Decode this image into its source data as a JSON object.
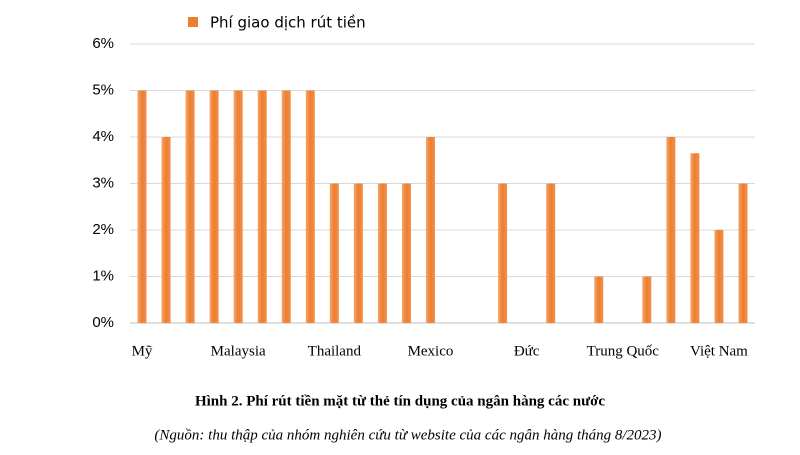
{
  "chart_data": {
    "type": "bar",
    "title": "Hình 2. Phí rút tiền mặt từ thẻ tín dụng của ngân hàng các nước",
    "subtitle": "(Nguồn: thu thập của nhóm nghiên cứu từ website của các ngân hàng tháng 8/2023)",
    "categories": [
      "Mỹ",
      null,
      null,
      null,
      "Malaysia",
      null,
      null,
      null,
      "Thailand",
      null,
      null,
      null,
      "Mexico",
      null,
      null,
      null,
      "Đức",
      null,
      null,
      null,
      "Trung Quốc",
      null,
      null,
      null,
      "Việt Nam",
      null
    ],
    "series": [
      {
        "name": "Phí giao dịch rút tiền",
        "color": "#ee7d2e",
        "values": [
          5,
          4,
          5,
          5,
          5,
          5,
          5,
          5,
          3,
          3,
          3,
          3,
          4,
          null,
          null,
          3,
          null,
          3,
          null,
          1,
          null,
          1,
          4,
          3.65,
          2,
          3
        ]
      }
    ],
    "ylim": [
      0,
      6
    ],
    "yticks": [
      {
        "value": 0,
        "label": "0%"
      },
      {
        "value": 1,
        "label": "1%"
      },
      {
        "value": 2,
        "label": "2%"
      },
      {
        "value": 3,
        "label": "3%"
      },
      {
        "value": 4,
        "label": "4%"
      },
      {
        "value": 5,
        "label": "5%"
      },
      {
        "value": 6,
        "label": "6%"
      }
    ],
    "grid": true
  }
}
